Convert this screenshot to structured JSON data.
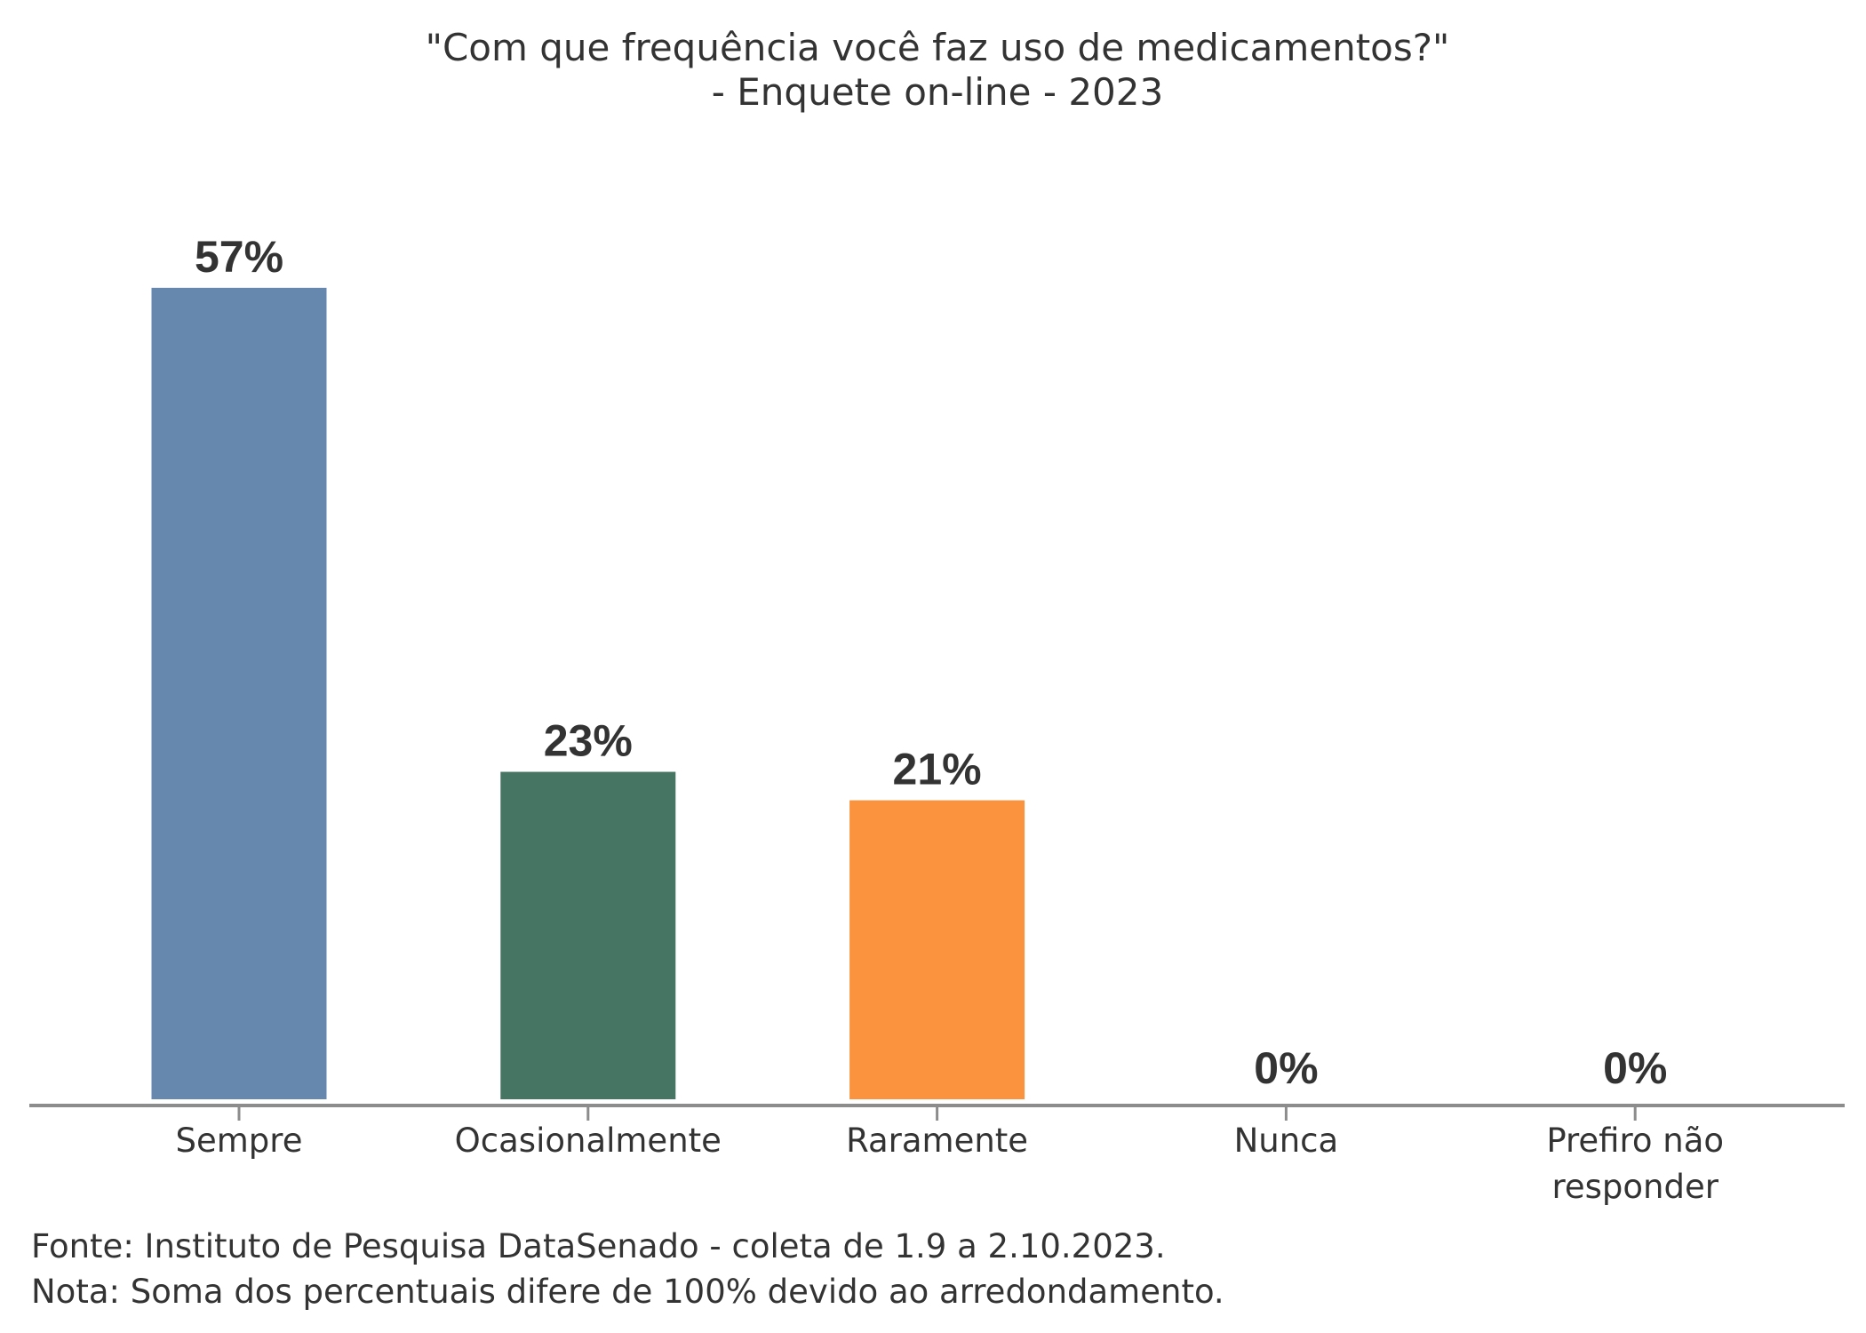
{
  "chart_data": {
    "type": "bar",
    "title": [
      "\"Com que frequência você faz uso de medicamentos?\"",
      "- Enquete on-line - 2023"
    ],
    "categories": [
      [
        "Sempre"
      ],
      [
        "Ocasionalmente"
      ],
      [
        "Raramente"
      ],
      [
        "Nunca"
      ],
      [
        "Prefiro não",
        "responder"
      ]
    ],
    "values": [
      57,
      23,
      21,
      0,
      0
    ],
    "data_labels": [
      "57%",
      "23%",
      "21%",
      "0%",
      "0%"
    ],
    "colors": [
      "#6688AF",
      "#467563",
      "#FB923E",
      "#6688AF",
      "#6688AF"
    ],
    "xlabel": "",
    "ylabel": "",
    "ylim": [
      0,
      60
    ],
    "grid": false,
    "legend": "none"
  },
  "footer": {
    "source": "Fonte: Instituto de Pesquisa DataSenado - coleta de 1.9 a 2.10.2023.",
    "note": "Nota: Soma dos percentuais difere de 100% devido ao arredondamento."
  }
}
